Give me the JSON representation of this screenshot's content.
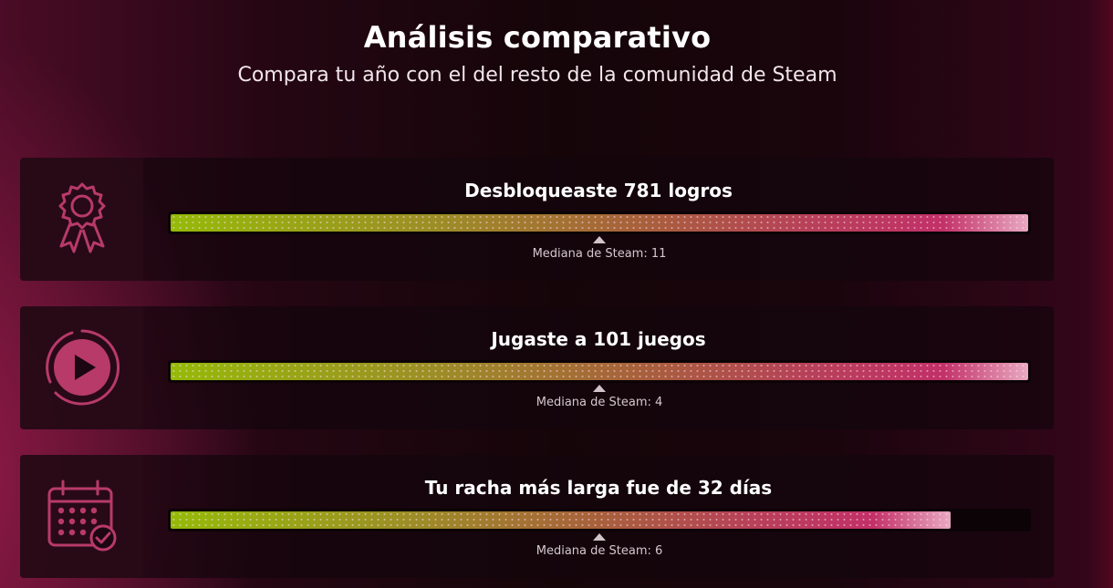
{
  "header": {
    "title": "Análisis comparativo",
    "subtitle": "Compara tu año con el del resto de la comunidad de Steam"
  },
  "stats": [
    {
      "icon": "award-ribbon-icon",
      "label": "Desbloqueaste 781 logros",
      "fill_fraction": 1.0,
      "median_label": "Mediana de Steam: 11",
      "median_position_fraction": 0.5
    },
    {
      "icon": "play-circle-icon",
      "label": "Jugaste a 101 juegos",
      "fill_fraction": 1.0,
      "median_label": "Mediana de Steam: 4",
      "median_position_fraction": 0.5
    },
    {
      "icon": "calendar-check-icon",
      "label": "Tu racha más larga fue de 32 días",
      "fill_fraction": 0.91,
      "median_label": "Mediana de Steam: 6",
      "median_position_fraction": 0.5
    }
  ],
  "colors": {
    "accent": "#b83a68",
    "bar_start": "#95ba08",
    "bar_end": "#e8a9c0"
  }
}
